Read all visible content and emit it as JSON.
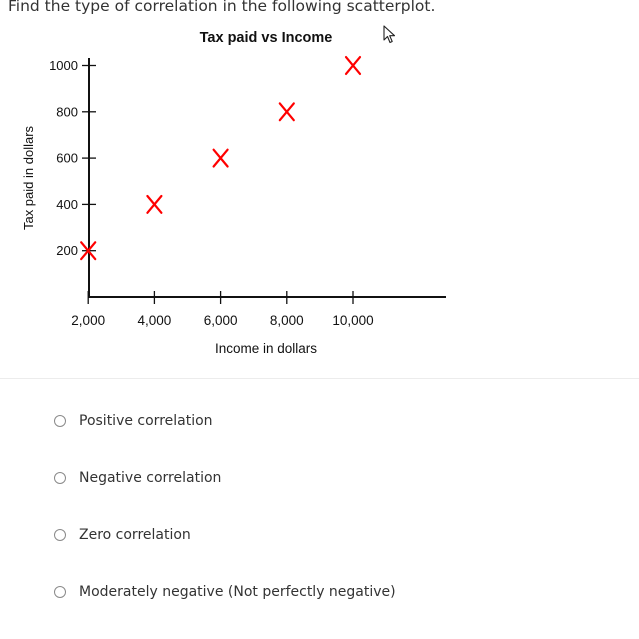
{
  "question": {
    "text": "Find the type of correlation in the following scatterplot."
  },
  "chart_data": {
    "type": "scatter",
    "title": "Tax paid vs Income",
    "xlabel": "Income in dollars",
    "ylabel": "Tax paid in dollars",
    "x_ticks": [
      2000,
      4000,
      6000,
      8000,
      10000
    ],
    "x_tick_labels": [
      "2,000",
      "4,000",
      "6,000",
      "8,000",
      "10,000"
    ],
    "y_ticks": [
      200,
      400,
      600,
      800,
      1000
    ],
    "y_tick_labels": [
      "200",
      "400",
      "600",
      "800",
      "1000"
    ],
    "xlim": [
      0,
      10000
    ],
    "ylim": [
      0,
      1000
    ],
    "grid": false,
    "marker": "x",
    "marker_color": "#ff0000",
    "points": [
      {
        "x": 2000,
        "y": 200
      },
      {
        "x": 4000,
        "y": 400
      },
      {
        "x": 6000,
        "y": 600
      },
      {
        "x": 8000,
        "y": 800
      },
      {
        "x": 10000,
        "y": 1000
      }
    ]
  },
  "options": [
    {
      "label": "Positive correlation"
    },
    {
      "label": "Negative correlation"
    },
    {
      "label": "Zero correlation"
    },
    {
      "label": "Moderately negative (Not perfectly negative)"
    }
  ],
  "icons": {
    "cursor": "mouse-pointer-icon",
    "radio": "radio-circle-icon"
  }
}
